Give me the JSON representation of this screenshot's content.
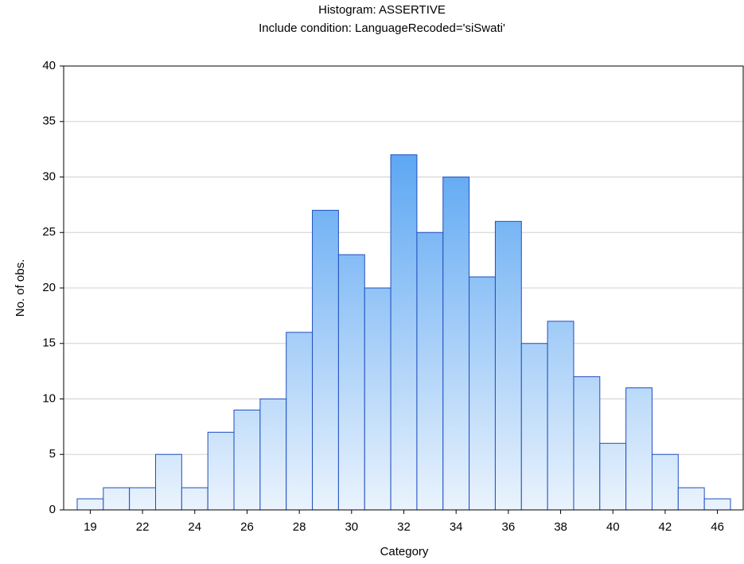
{
  "chart_data": {
    "type": "bar",
    "title": "Histogram: ASSERTIVE",
    "subtitle": "Include condition: LanguageRecoded='siSwati'",
    "x_label": "Category",
    "y_label": "No. of obs.",
    "categories": [
      "19",
      null,
      "22",
      null,
      "24",
      null,
      "26",
      null,
      "28",
      null,
      "30",
      null,
      "32",
      null,
      "34",
      null,
      "36",
      null,
      "38",
      null,
      "40",
      null,
      "42",
      null,
      "46"
    ],
    "values": [
      1,
      2,
      2,
      5,
      2,
      7,
      9,
      10,
      16,
      27,
      23,
      20,
      32,
      25,
      30,
      21,
      26,
      15,
      17,
      12,
      6,
      11,
      5,
      2,
      1
    ],
    "color": "#3a94f0",
    "ylim": [
      0,
      40
    ],
    "yticks": [
      0,
      5,
      10,
      15,
      20,
      25,
      30,
      35,
      40
    ],
    "grid": true
  }
}
